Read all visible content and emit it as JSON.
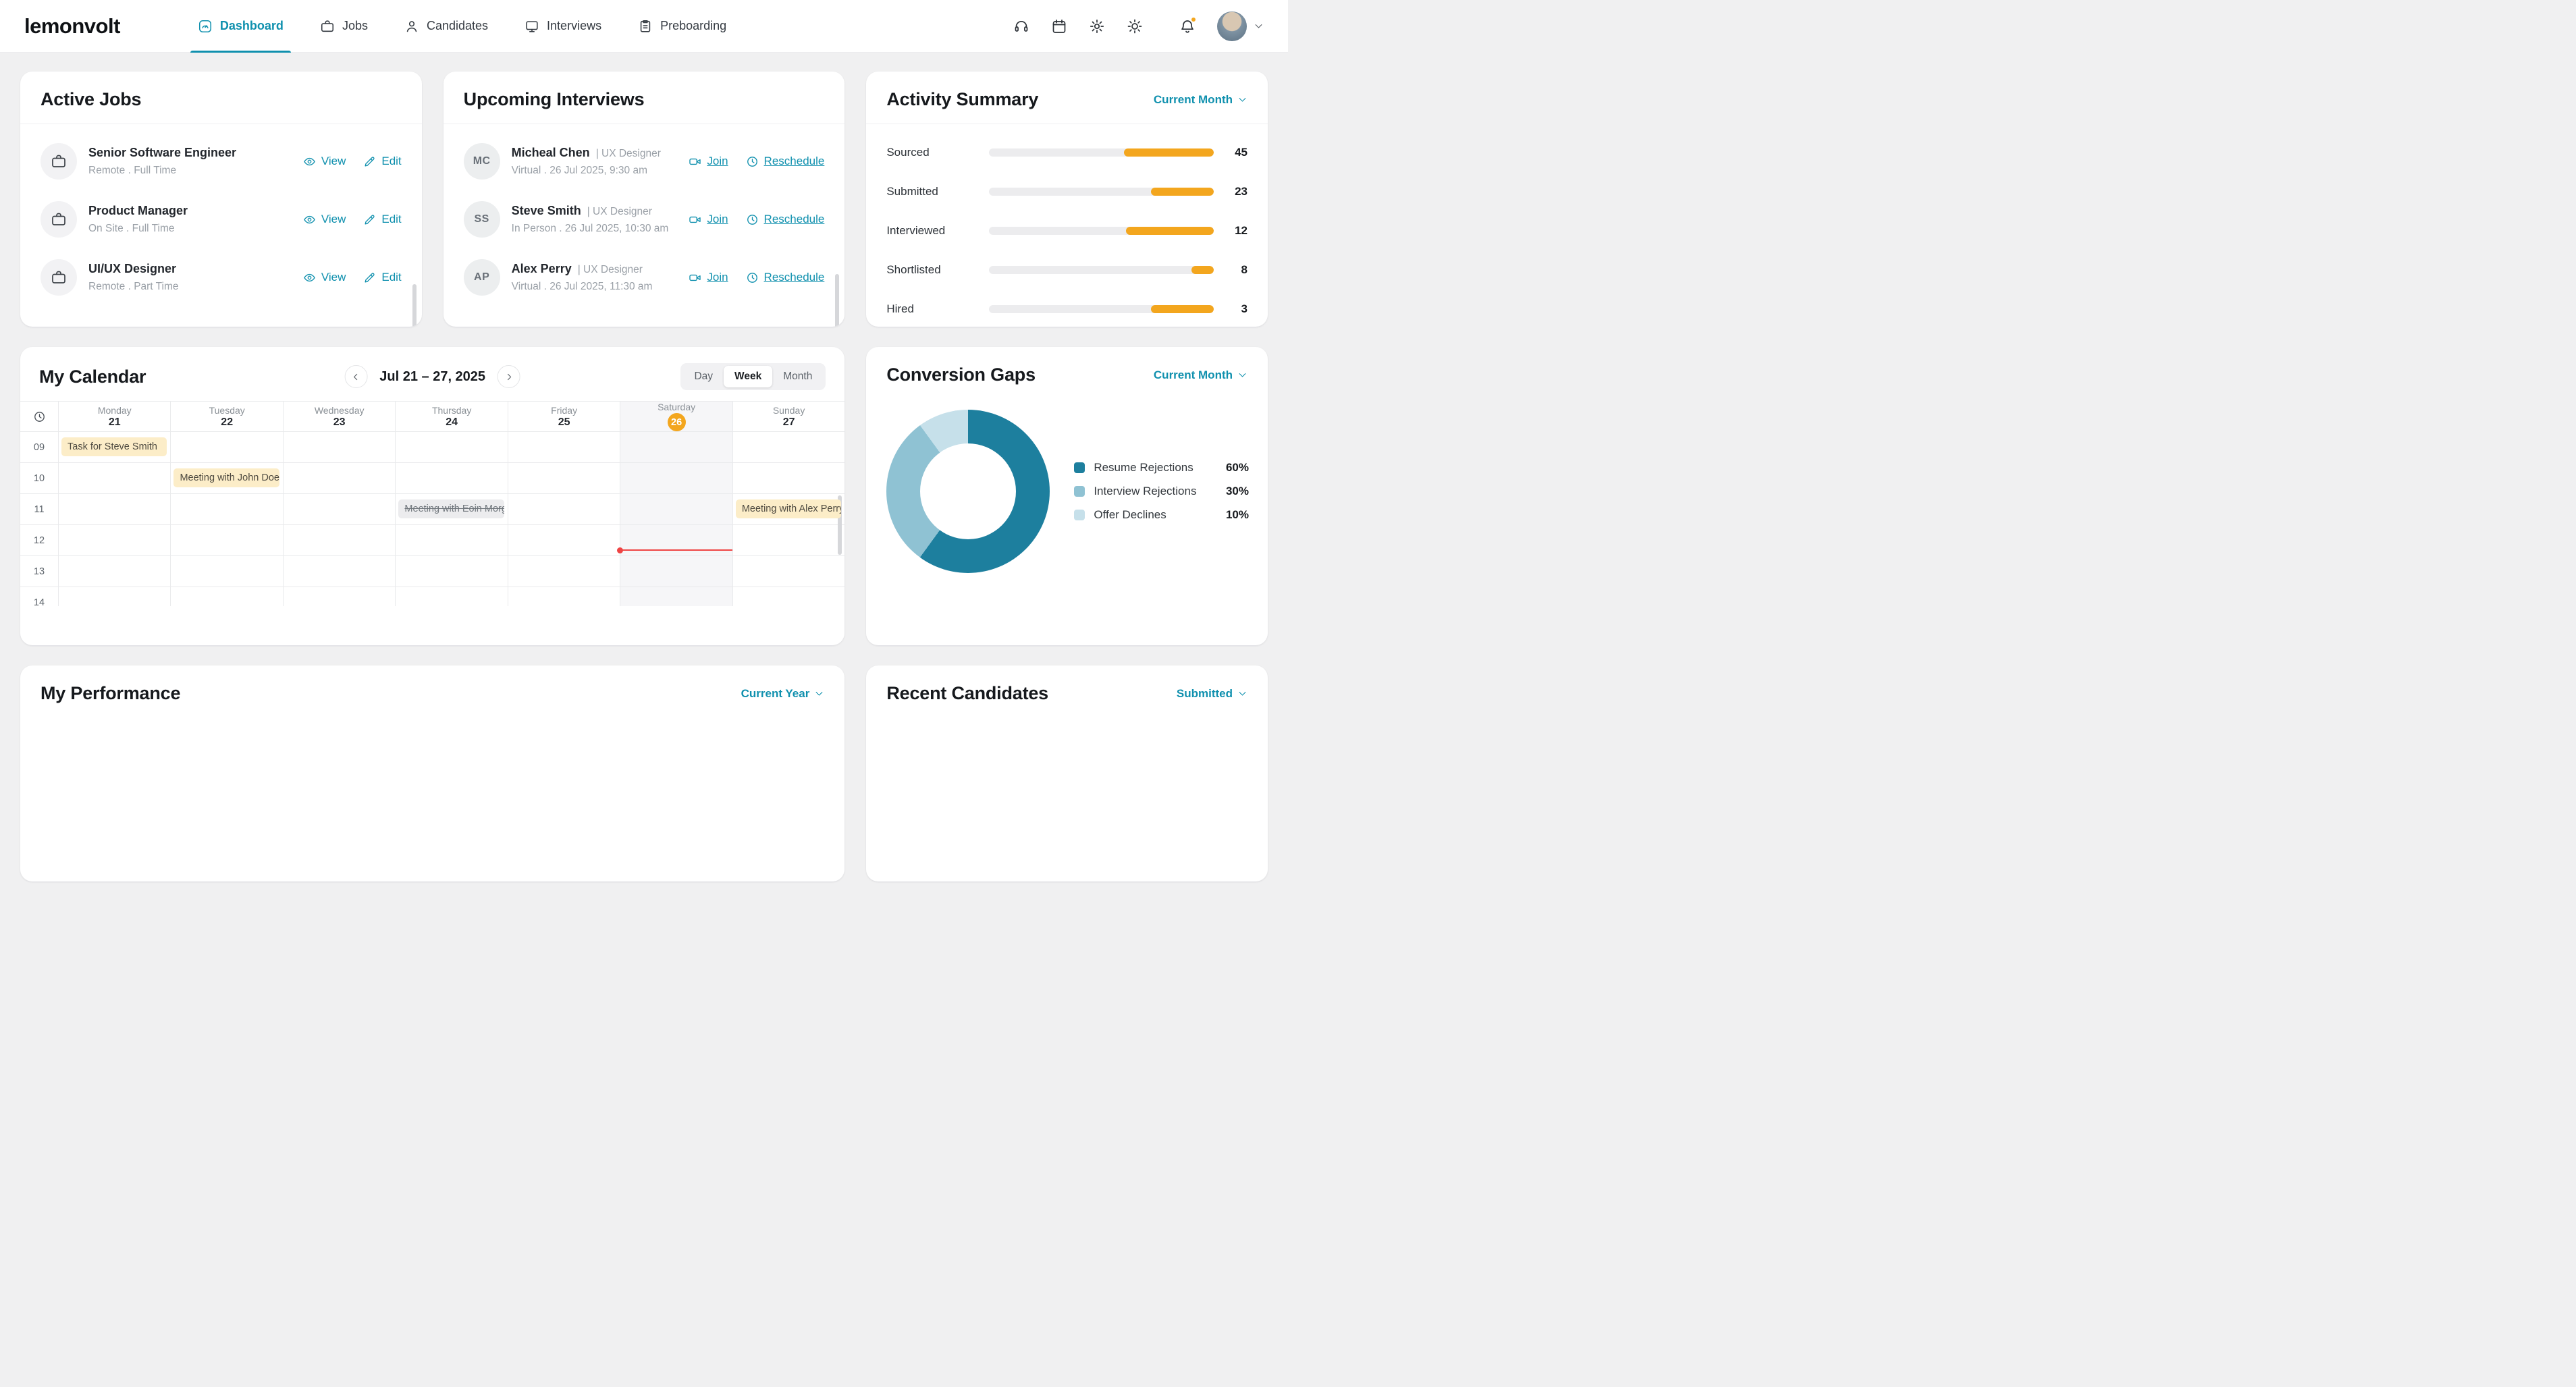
{
  "header": {
    "logo": "lemonvolt",
    "nav": [
      {
        "label": "Dashboard",
        "active": true
      },
      {
        "label": "Jobs",
        "active": false
      },
      {
        "label": "Candidates",
        "active": false
      },
      {
        "label": "Interviews",
        "active": false
      },
      {
        "label": "Preboarding",
        "active": false
      }
    ]
  },
  "active_jobs": {
    "title": "Active Jobs",
    "view_label": "View",
    "edit_label": "Edit",
    "jobs": [
      {
        "title": "Senior Software Engineer",
        "meta": "Remote . Full Time"
      },
      {
        "title": "Product Manager",
        "meta": "On Site . Full Time"
      },
      {
        "title": "UI/UX Designer",
        "meta": "Remote . Part Time"
      }
    ]
  },
  "upcoming_interviews": {
    "title": "Upcoming Interviews",
    "join_label": "Join",
    "reschedule_label": "Reschedule",
    "interviews": [
      {
        "initials": "MC",
        "name": "Micheal Chen",
        "role": "| UX Designer",
        "meta": "Virtual . 26 Jul 2025, 9:30 am"
      },
      {
        "initials": "SS",
        "name": "Steve Smith",
        "role": "| UX Designer",
        "meta": "In Person . 26 Jul 2025, 10:30 am"
      },
      {
        "initials": "AP",
        "name": "Alex Perry",
        "role": "| UX Designer",
        "meta": "Virtual . 26 Jul 2025, 11:30 am"
      }
    ]
  },
  "activity_summary": {
    "title": "Activity Summary",
    "filter": "Current Month",
    "rows": [
      {
        "label": "Sourced",
        "value": "45",
        "percent": 40
      },
      {
        "label": "Submitted",
        "value": "23",
        "percent": 28
      },
      {
        "label": "Interviewed",
        "value": "12",
        "percent": 39
      },
      {
        "label": "Shortlisted",
        "value": "8",
        "percent": 10
      },
      {
        "label": "Hired",
        "value": "3",
        "percent": 28
      }
    ]
  },
  "calendar": {
    "title": "My Calendar",
    "range": "Jul 21 – 27, 2025",
    "views": [
      "Day",
      "Week",
      "Month"
    ],
    "active_view": "Week",
    "days": [
      {
        "name": "Monday",
        "date": "21",
        "highlight": false
      },
      {
        "name": "Tuesday",
        "date": "22",
        "highlight": false
      },
      {
        "name": "Wednesday",
        "date": "23",
        "highlight": false
      },
      {
        "name": "Thursday",
        "date": "24",
        "highlight": false
      },
      {
        "name": "Friday",
        "date": "25",
        "highlight": false
      },
      {
        "name": "Saturday",
        "date": "26",
        "highlight": true
      },
      {
        "name": "Sunday",
        "date": "27",
        "highlight": false
      }
    ],
    "hours": [
      "09",
      "10",
      "11",
      "12",
      "13",
      "14"
    ],
    "events": [
      {
        "label": "Task for Steve Smith",
        "day": "Monday",
        "hour": "09",
        "cancelled": false
      },
      {
        "label": "Meeting with John Doe S...",
        "day": "Tuesday",
        "hour": "10",
        "cancelled": false
      },
      {
        "label": "Meeting with Eoin Morgan",
        "day": "Thursday",
        "hour": "11",
        "cancelled": true
      },
      {
        "label": "Meeting with Alex Perry",
        "day": "Sunday",
        "hour": "11",
        "cancelled": false
      }
    ],
    "now": {
      "day": "Saturday"
    }
  },
  "conversion_gaps": {
    "title": "Conversion Gaps",
    "filter": "Current Month",
    "chart_data": {
      "type": "pie",
      "slices": [
        {
          "label": "Resume Rejections",
          "value": 60,
          "color": "#1d7f9e"
        },
        {
          "label": "Interview Rejections",
          "value": 30,
          "color": "#8fc2d3"
        },
        {
          "label": "Offer Declines",
          "value": 10,
          "color": "#c6e0ea"
        }
      ]
    }
  },
  "my_performance": {
    "title": "My Performance",
    "filter": "Current Year"
  },
  "recent_candidates": {
    "title": "Recent Candidates",
    "filter": "Submitted"
  }
}
